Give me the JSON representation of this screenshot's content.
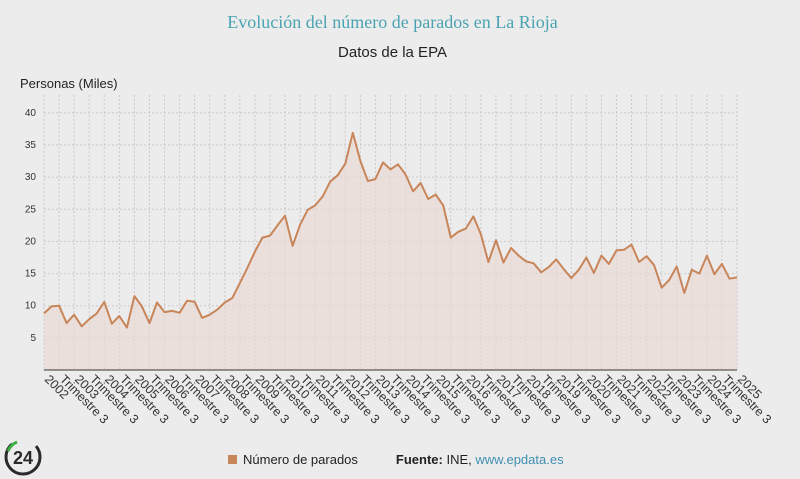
{
  "chart_data": {
    "type": "area",
    "title": "Evolución del número de parados en La Rioja",
    "subtitle": "Datos de la EPA",
    "ylabel": "Personas (Miles)",
    "ylim": [
      0,
      42
    ],
    "yticks": [
      5,
      10,
      15,
      20,
      25,
      30,
      35,
      40
    ],
    "grid": true,
    "legend_position": "bottom",
    "colors": {
      "line": "#c8855a",
      "fill": "#e9d8d2"
    },
    "series": [
      {
        "name": "Número de parados",
        "values": [
          8.8,
          9.9,
          10.0,
          7.3,
          8.6,
          6.8,
          7.9,
          8.8,
          10.6,
          7.2,
          8.4,
          6.6,
          11.5,
          9.9,
          7.3,
          10.5,
          9.0,
          9.2,
          8.9,
          10.8,
          10.6,
          8.1,
          8.6,
          9.4,
          10.5,
          11.2,
          13.5,
          15.9,
          18.4,
          20.6,
          20.9,
          22.5,
          24.0,
          19.3,
          22.6,
          24.9,
          25.6,
          27.0,
          29.3,
          30.3,
          32.1,
          36.9,
          32.5,
          29.4,
          29.7,
          32.3,
          31.2,
          32.0,
          30.4,
          27.8,
          29.1,
          26.6,
          27.3,
          25.6,
          20.6,
          21.5,
          22.0,
          23.9,
          21.1,
          16.8,
          20.2,
          16.7,
          19.0,
          17.8,
          16.9,
          16.6,
          15.2,
          16.0,
          17.2,
          15.7,
          14.3,
          15.6,
          17.5,
          15.1,
          17.8,
          16.5,
          18.6,
          18.7,
          19.5,
          16.8,
          17.7,
          16.3,
          12.8,
          14.0,
          16.1,
          12.0,
          15.6,
          15.0,
          17.8,
          14.9,
          16.5,
          14.2,
          14.4
        ]
      }
    ],
    "x_start": {
      "year": 2002,
      "quarter": 1
    },
    "x_tick_labels": [
      "2002",
      "Trimestre 3",
      "2003",
      "Trimestre 3",
      "2004",
      "Trimestre 3",
      "2005",
      "Trimestre 3",
      "2006",
      "Trimestre 3",
      "2007",
      "Trimestre 3",
      "2008",
      "Trimestre 3",
      "2009",
      "Trimestre 3",
      "2010",
      "Trimestre 3",
      "2011",
      "Trimestre 3",
      "2012",
      "Trimestre 3",
      "2013",
      "Trimestre 3",
      "2014",
      "Trimestre 3",
      "2015",
      "Trimestre 3",
      "2016",
      "Trimestre 3",
      "2017",
      "Trimestre 3",
      "2018",
      "Trimestre 3",
      "2019",
      "Trimestre 3",
      "2020",
      "Trimestre 3",
      "2021",
      "Trimestre 3",
      "2022",
      "Trimestre 3",
      "2023",
      "Trimestre 3",
      "2024",
      "Trimestre 3",
      "2025"
    ]
  },
  "legend": {
    "label": "Número de parados"
  },
  "source": {
    "label": "Fuente:",
    "text": "INE,",
    "link": "www.epdata.es"
  },
  "logo": {
    "text": "24"
  }
}
